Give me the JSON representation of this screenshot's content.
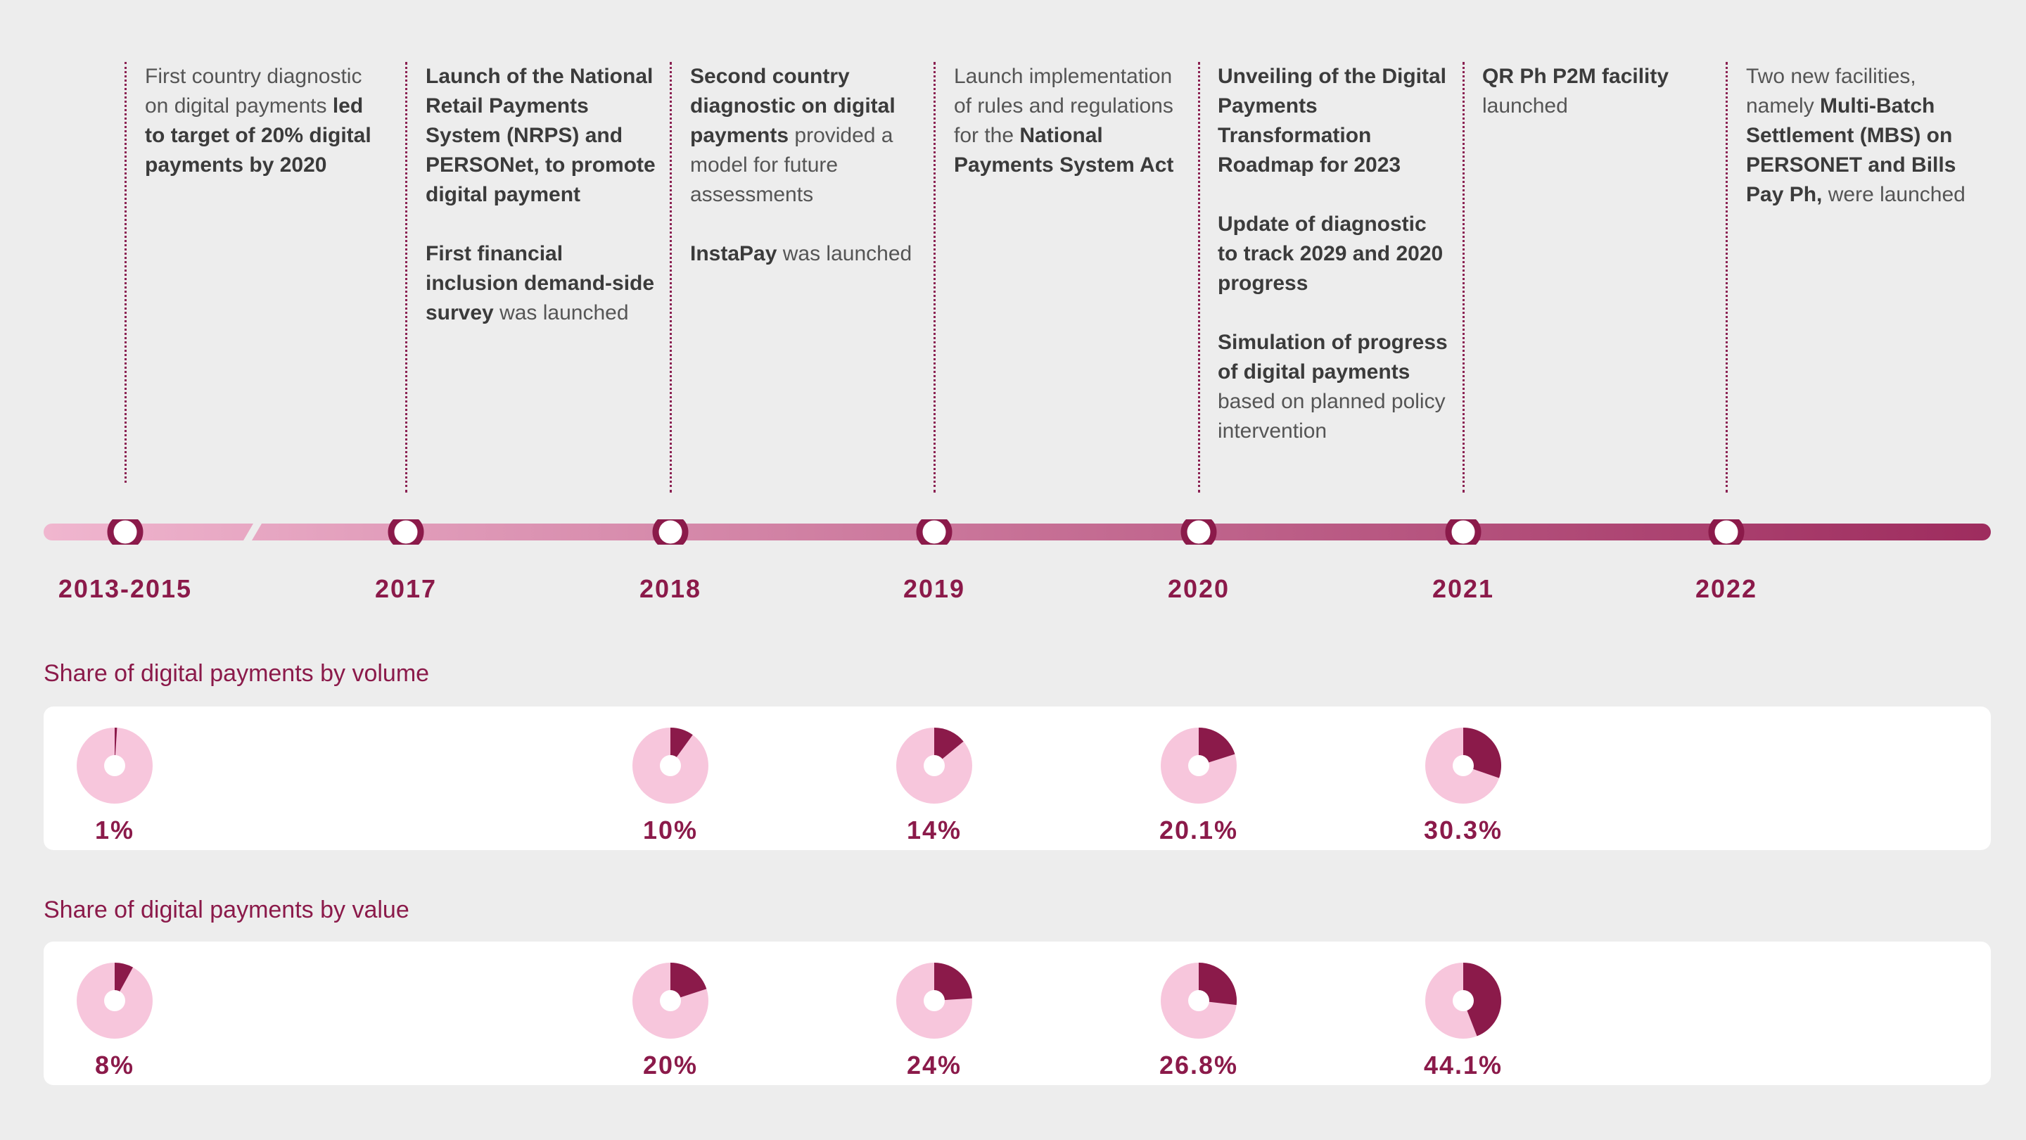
{
  "colors": {
    "accent": "#8b1a4a",
    "pie_fill": "#8b1a4a",
    "pie_rest": "#f7c6dc",
    "track_start": "#f0b6cf",
    "track_end": "#9e2c5e"
  },
  "timeline": {
    "years": [
      "2013-2015",
      "2017",
      "2018",
      "2019",
      "2020",
      "2021",
      "2022"
    ],
    "events": [
      {
        "year": "2013-2015",
        "paragraphs": [
          [
            {
              "t": "First country diagnostic on digital payments ",
              "b": false
            },
            {
              "t": "led to target of 20% digital payments by 2020",
              "b": true
            }
          ]
        ]
      },
      {
        "year": "2017",
        "paragraphs": [
          [
            {
              "t": "Launch of the National Retail Payments System (NRPS) and PERSONet, to promote digital payment",
              "b": true
            }
          ],
          [
            {
              "t": "First financial inclusion demand-side survey",
              "b": true
            },
            {
              "t": " was launched",
              "b": false
            }
          ]
        ]
      },
      {
        "year": "2018",
        "paragraphs": [
          [
            {
              "t": "Second country diagnostic on digital payments",
              "b": true
            },
            {
              "t": " provided a model for future assessments",
              "b": false
            }
          ],
          [
            {
              "t": "InstaPay",
              "b": true
            },
            {
              "t": " was launched",
              "b": false
            }
          ]
        ]
      },
      {
        "year": "2019",
        "paragraphs": [
          [
            {
              "t": "Launch implementation of rules and regulations for the ",
              "b": false
            },
            {
              "t": "National Payments System Act",
              "b": true
            }
          ]
        ]
      },
      {
        "year": "2020",
        "paragraphs": [
          [
            {
              "t": "Unveiling of the Digital Payments Transformation Roadmap for 2023",
              "b": true
            }
          ],
          [
            {
              "t": "Update of diagnostic to track 2029 and 2020 progress",
              "b": true
            }
          ],
          [
            {
              "t": "Simulation of progress of digital payments",
              "b": true
            },
            {
              "t": " based on planned policy intervention",
              "b": false
            }
          ]
        ]
      },
      {
        "year": "2021",
        "paragraphs": [
          [
            {
              "t": "QR Ph P2M facility",
              "b": true
            },
            {
              "t": " launched",
              "b": false
            }
          ]
        ]
      },
      {
        "year": "2022",
        "paragraphs": [
          [
            {
              "t": "Two new facilities, namely ",
              "b": false
            },
            {
              "t": "Multi-Batch Settlement (MBS) on PERSONET and Bills Pay Ph,",
              "b": true
            },
            {
              "t": " were launched",
              "b": false
            }
          ]
        ]
      }
    ]
  },
  "chart_data": [
    {
      "type": "pie",
      "title": "Share of digital payments by volume",
      "categories": [
        "2013-2015",
        "2018",
        "2019",
        "2020",
        "2021"
      ],
      "values": [
        1,
        10,
        14,
        20.1,
        30.3
      ],
      "labels": [
        "1%",
        "10%",
        "14%",
        "20.1%",
        "30.3%"
      ]
    },
    {
      "type": "pie",
      "title": "Share of digital payments by value",
      "categories": [
        "2013-2015",
        "2018",
        "2019",
        "2020",
        "2021"
      ],
      "values": [
        8,
        20,
        24,
        26.8,
        44.1
      ],
      "labels": [
        "8%",
        "20%",
        "24%",
        "26.8%",
        "44.1%"
      ]
    }
  ]
}
